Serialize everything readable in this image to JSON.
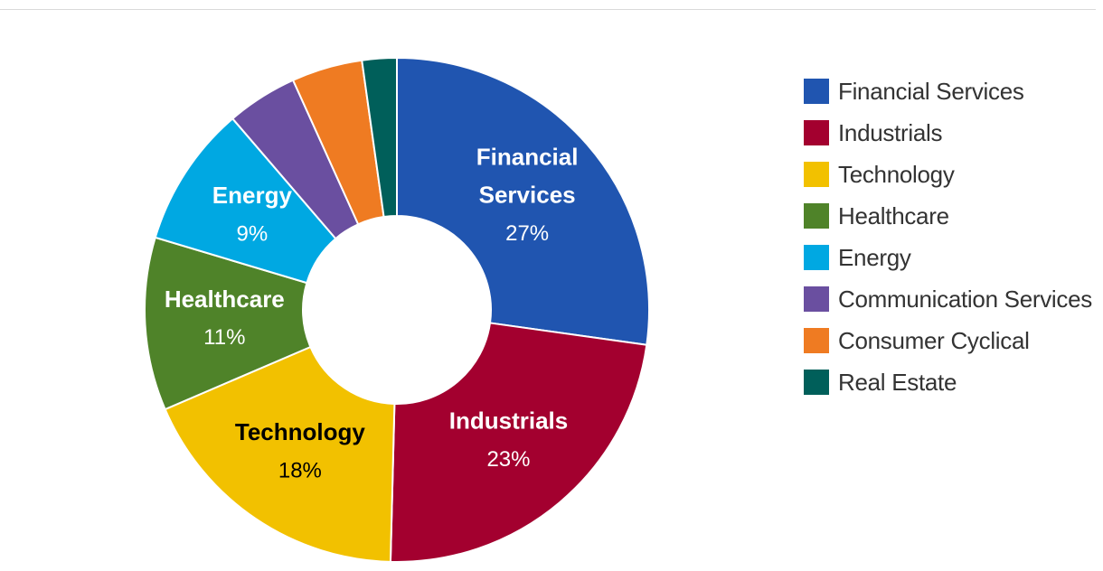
{
  "chart_data": {
    "type": "pie",
    "variant": "donut",
    "slices": [
      {
        "label": "Financial Services",
        "value": 27,
        "color": "#2055b0",
        "label_lines": [
          "Financial",
          "Services"
        ],
        "pct_label": "27%",
        "show_label": true,
        "label_color": "#ffffff"
      },
      {
        "label": "Industrials",
        "value": 23,
        "color": "#a3002f",
        "label_lines": [
          "Industrials"
        ],
        "pct_label": "23%",
        "show_label": true,
        "label_color": "#ffffff"
      },
      {
        "label": "Technology",
        "value": 18,
        "color": "#f2c100",
        "label_lines": [
          "Technology"
        ],
        "pct_label": "18%",
        "show_label": true,
        "label_color": "#000000"
      },
      {
        "label": "Healthcare",
        "value": 11,
        "color": "#4f8329",
        "label_lines": [
          "Healthcare"
        ],
        "pct_label": "11%",
        "show_label": true,
        "label_color": "#ffffff"
      },
      {
        "label": "Energy",
        "value": 9,
        "color": "#00a8e2",
        "label_lines": [
          "Energy"
        ],
        "pct_label": "9%",
        "show_label": true,
        "label_color": "#ffffff"
      },
      {
        "label": "Communication Services",
        "value": 4.5,
        "color": "#6a4fa0",
        "show_label": false
      },
      {
        "label": "Consumer Cyclical",
        "value": 4.5,
        "color": "#ef7b22",
        "show_label": false
      },
      {
        "label": "Real Estate",
        "value": 2.2,
        "color": "#005f5a",
        "show_label": false
      }
    ],
    "legend": {
      "placement": "right",
      "items": [
        "Financial Services",
        "Industrials",
        "Technology",
        "Healthcare",
        "Energy",
        "Communication Services",
        "Consumer Cyclical",
        "Real Estate"
      ]
    }
  }
}
